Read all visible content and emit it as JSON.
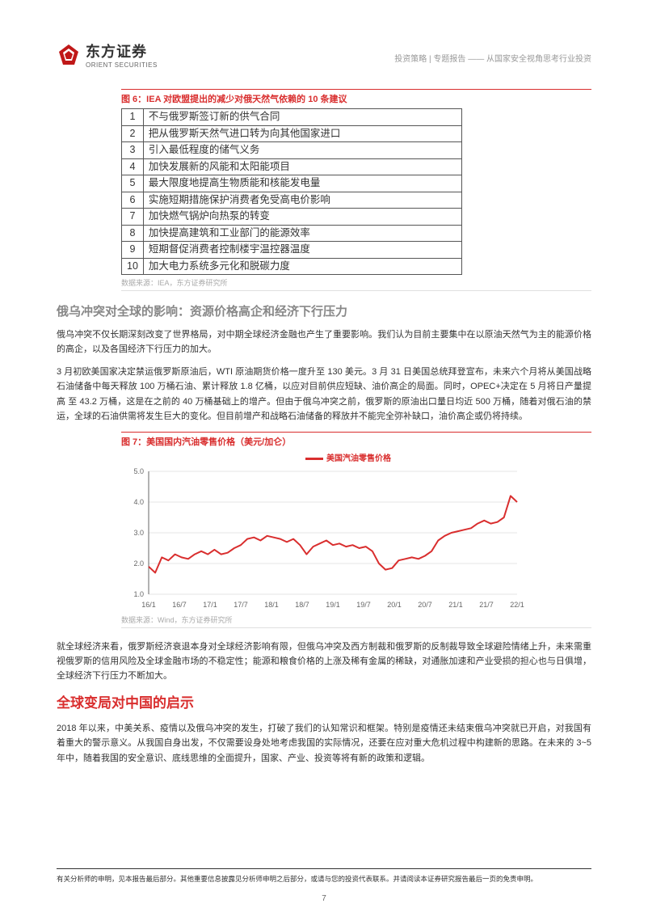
{
  "header": {
    "logo_cn": "东方证券",
    "logo_en": "ORIENT SECURITIES",
    "breadcrumb": "投资策略 | 专题报告 —— 从国家安全视角思考行业投资"
  },
  "fig6": {
    "title": "图 6：IEA 对欧盟提出的减少对俄天然气依赖的 10 条建议",
    "rows": [
      "不与俄罗斯签订新的供气合同",
      "把从俄罗斯天然气进口转为向其他国家进口",
      "引入最低程度的储气义务",
      "加快发展新的风能和太阳能项目",
      "最大限度地提高生物质能和核能发电量",
      "实施短期措施保护消费者免受高电价影响",
      "加快燃气锅炉向热泵的转变",
      "加快提高建筑和工业部门的能源效率",
      "短期督促消费者控制楼宇温控器温度",
      "加大电力系统多元化和脱碳力度"
    ],
    "source": "数据来源：IEA，东方证券研究所"
  },
  "section1": {
    "heading": "俄乌冲突对全球的影响：资源价格高企和经济下行压力",
    "p1": "俄乌冲突不仅长期深刻改变了世界格局，对中期全球经济金融也产生了重要影响。我们认为目前主要集中在以原油天然气为主的能源价格的高企，以及各国经济下行压力的加大。",
    "p2": "3 月初欧美国家决定禁运俄罗斯原油后，WTI 原油期货价格一度升至 130 美元。3 月 31 日美国总统拜登宣布，未来六个月将从美国战略石油储备中每天释放 100 万桶石油、累计释放 1.8 亿桶，以应对目前供应短缺、油价高企的局面。同时，OPEC+决定在 5 月将日产量提高 至 43.2 万桶，这是在之前的 40 万桶基础上的增产。但由于俄乌冲突之前，俄罗斯的原油出口量日均近 500 万桶，随着对俄石油的禁运，全球的石油供需将发生巨大的变化。但目前增产和战略石油储备的释放并不能完全弥补缺口，油价高企或仍将持续。"
  },
  "fig7": {
    "title": "图 7：美国国内汽油零售价格（美元/加仑）",
    "legend": "美国汽油零售价格",
    "type": "line",
    "line_color": "#d92e2e",
    "line_width": 2,
    "background_color": "#ffffff",
    "grid_color": "#cccccc",
    "axis_color": "#666666",
    "tick_fontsize": 9,
    "tick_color": "#666666",
    "ylim": [
      1.0,
      5.0
    ],
    "ytick_step": 1.0,
    "yticks": [
      "1.0",
      "2.0",
      "3.0",
      "4.0",
      "5.0"
    ],
    "xticks": [
      "16/1",
      "16/7",
      "17/1",
      "17/7",
      "18/1",
      "18/7",
      "19/1",
      "19/7",
      "20/1",
      "20/7",
      "21/1",
      "21/7",
      "22/1"
    ],
    "values": [
      1.9,
      1.7,
      2.2,
      2.1,
      2.3,
      2.2,
      2.15,
      2.3,
      2.4,
      2.3,
      2.45,
      2.3,
      2.35,
      2.5,
      2.6,
      2.8,
      2.85,
      2.75,
      2.9,
      2.85,
      2.8,
      2.7,
      2.8,
      2.6,
      2.3,
      2.55,
      2.65,
      2.75,
      2.6,
      2.65,
      2.55,
      2.6,
      2.5,
      2.55,
      2.4,
      2.0,
      1.8,
      1.85,
      2.1,
      2.15,
      2.2,
      2.15,
      2.25,
      2.4,
      2.75,
      2.9,
      3.0,
      3.05,
      3.1,
      3.15,
      3.3,
      3.4,
      3.3,
      3.35,
      3.5,
      4.2,
      4.0
    ],
    "source": "数据来源：Wind，东方证券研究所"
  },
  "para_after": "就全球经济来看，俄罗斯经济衰退本身对全球经济影响有限，但俄乌冲突及西方制裁和俄罗斯的反制裁导致全球避险情绪上升，未来需重视俄罗斯的信用风险及全球金融市场的不稳定性；能源和粮食价格的上涨及稀有金属的稀缺，对通胀加速和产业受损的担心也与日俱增，全球经济下行压力不断加大。",
  "section2": {
    "heading": "全球变局对中国的启示",
    "p1": "2018 年以来，中美关系、疫情以及俄乌冲突的发生，打破了我们的认知常识和框架。特别是疫情还未结束俄乌冲突就已开启，对我国有着重大的警示意义。从我国自身出发，不仅需要设身处地考虑我国的实际情况，还要在应对重大危机过程中构建新的思路。在未来的 3~5 年中，随着我国的安全意识、底线思维的全面提升，国家、产业、投资等将有新的政策和逻辑。"
  },
  "footer": {
    "disclaimer": "有关分析师的申明，见本报告最后部分。其他重要信息披露见分析师申明之后部分，或请与您的投资代表联系。并请阅读本证券研究报告最后一页的免责申明。",
    "page_number": "7"
  }
}
